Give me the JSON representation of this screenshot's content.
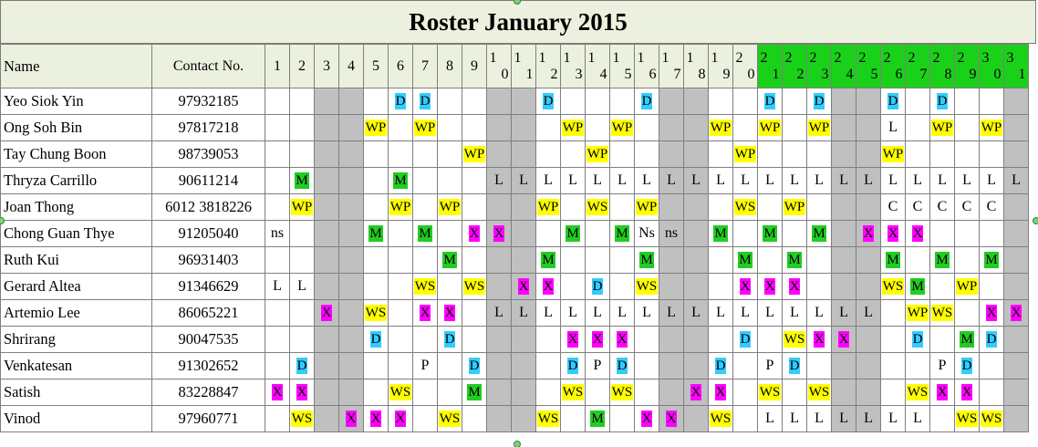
{
  "title": "Roster January 2015",
  "columns": {
    "name": "Name",
    "contact": "Contact No."
  },
  "days": [
    "1",
    "2",
    "3",
    "4",
    "5",
    "6",
    "7",
    "8",
    "9",
    "10",
    "11",
    "12",
    "13",
    "14",
    "15",
    "16",
    "17",
    "18",
    "19",
    "20",
    "21",
    "22",
    "23",
    "24",
    "25",
    "26",
    "27",
    "28",
    "29",
    "30",
    "31"
  ],
  "highlighted_days": [
    21,
    22,
    23,
    24,
    25,
    26,
    27,
    28,
    29,
    30,
    31
  ],
  "weekend_days": [
    3,
    4,
    10,
    11,
    17,
    18,
    24,
    25,
    31
  ],
  "colors": {
    "title_bg": "#ebf1de",
    "highlight": "#1ad11a",
    "weekend": "#c0c0c0",
    "D": "#33ccff",
    "WP": "#ffff00",
    "WS": "#ffff00",
    "M": "#22cc22",
    "X": "#ff00ff"
  },
  "rows": [
    {
      "name": "Yeo Siok Yin",
      "contact": "97932185",
      "cells": [
        "",
        "",
        "",
        "",
        "",
        "D",
        "D",
        "",
        "",
        "",
        "",
        "D",
        "",
        "",
        "",
        "D",
        "",
        "",
        "",
        "",
        "D",
        "",
        "D",
        "",
        "",
        "D",
        "",
        "D",
        "",
        "",
        ""
      ]
    },
    {
      "name": "Ong Soh Bin",
      "contact": "97817218",
      "cells": [
        "",
        "",
        "",
        "",
        "WP",
        "",
        "WP",
        "",
        "",
        "",
        "",
        "",
        "WP",
        "",
        "WP",
        "",
        "",
        "",
        "WP",
        "",
        "WP",
        "",
        "WP",
        "",
        "",
        "L",
        "",
        "WP",
        "",
        "WP",
        ""
      ]
    },
    {
      "name": "Tay Chung Boon",
      "contact": "98739053",
      "cells": [
        "",
        "",
        "",
        "",
        "",
        "",
        "",
        "",
        "WP",
        "",
        "",
        "",
        "",
        "WP",
        "",
        "",
        "",
        "",
        "",
        "WP",
        "",
        "",
        "",
        "",
        "",
        "WP",
        "",
        "",
        "",
        "",
        ""
      ]
    },
    {
      "name": "Thryza Carrillo",
      "contact": "90611214",
      "cells": [
        "",
        "M",
        "",
        "",
        "",
        "M",
        "",
        "",
        "",
        "L",
        "L",
        "L",
        "L",
        "L",
        "L",
        "L",
        "L",
        "L",
        "L",
        "L",
        "L",
        "L",
        "L",
        "L",
        "L",
        "L",
        "L",
        "L",
        "L",
        "L",
        "L"
      ]
    },
    {
      "name": "Joan Thong",
      "contact": "6012 3818226",
      "cells": [
        "",
        "WP",
        "",
        "",
        "",
        "WP",
        "",
        "WP",
        "",
        "",
        "",
        "WP",
        "",
        "WS",
        "",
        "WP",
        "",
        "",
        "",
        "WS",
        "",
        "WP",
        "",
        "",
        "",
        "C",
        "C",
        "C",
        "C",
        "C",
        ""
      ]
    },
    {
      "name": "Chong Guan Thye",
      "contact": "91205040",
      "cells": [
        "ns",
        "",
        "",
        "",
        "M",
        "",
        "M",
        "",
        "X",
        "X",
        "",
        "",
        "M",
        "",
        "M",
        "Ns",
        "ns",
        "",
        "M",
        "",
        "M",
        "",
        "M",
        "",
        "X",
        "X",
        "X",
        "",
        "",
        "",
        ""
      ]
    },
    {
      "name": "Ruth Kui",
      "contact": "96931403",
      "cells": [
        "",
        "",
        "",
        "",
        "",
        "",
        "",
        "M",
        "",
        "",
        "",
        "M",
        "",
        "",
        "",
        "M",
        "",
        "",
        "",
        "M",
        "",
        "M",
        "",
        "",
        "",
        "M",
        "",
        "M",
        "",
        "M",
        ""
      ]
    },
    {
      "name": "Gerard Altea",
      "contact": "91346629",
      "cells": [
        "L",
        "L",
        "",
        "",
        "",
        "",
        "WS",
        "",
        "WS",
        "",
        "X",
        "X",
        "",
        "D",
        "",
        "WS",
        "",
        "",
        "",
        "X",
        "X",
        "X",
        "",
        "",
        "",
        "WS",
        "M",
        "",
        "WP",
        "",
        ""
      ]
    },
    {
      "name": "Artemio Lee",
      "contact": "86065221",
      "cells": [
        "",
        "",
        "X",
        "",
        "WS",
        "",
        "X",
        "X",
        "",
        "L",
        "L",
        "L",
        "L",
        "L",
        "L",
        "L",
        "L",
        "L",
        "L",
        "L",
        "L",
        "L",
        "L",
        "L",
        "L",
        "",
        "WP",
        "WS",
        "",
        "X",
        "X"
      ]
    },
    {
      "name": "Shrirang",
      "contact": "90047535",
      "cells": [
        "",
        "",
        "",
        "",
        "D",
        "",
        "",
        "D",
        "",
        "",
        "",
        "",
        "X",
        "X",
        "X",
        "",
        "",
        "",
        "",
        "D",
        "",
        "WS",
        "X",
        "X",
        "",
        "",
        "D",
        "",
        "M",
        "D",
        ""
      ]
    },
    {
      "name": "Venkatesan",
      "contact": "91302652",
      "cells": [
        "",
        "D",
        "",
        "",
        "",
        "",
        "P",
        "",
        "D",
        "",
        "",
        "",
        "D",
        "P",
        "D",
        "",
        "",
        "",
        "D",
        "",
        "P",
        "D",
        "",
        "",
        "",
        "",
        "",
        "P",
        "D",
        "",
        ""
      ]
    },
    {
      "name": "Satish",
      "contact": "83228847",
      "cells": [
        "X",
        "X",
        "",
        "",
        "",
        "WS",
        "",
        "",
        "M",
        "",
        "",
        "",
        "WS",
        "",
        "WS",
        "",
        "",
        "X",
        "X",
        "",
        "WS",
        "",
        "WS",
        "",
        "",
        "",
        "WS",
        "X",
        "X",
        "",
        ""
      ]
    },
    {
      "name": "Vinod",
      "contact": "97960771",
      "cells": [
        "",
        "WS",
        "",
        "X",
        "X",
        "X",
        "",
        "WS",
        "",
        "",
        "",
        "WS",
        "",
        "M",
        "",
        "X",
        "X",
        "",
        "WS",
        "",
        "L",
        "L",
        "L",
        "L",
        "L",
        "L",
        "L",
        "",
        "WS",
        "WS",
        ""
      ]
    }
  ]
}
